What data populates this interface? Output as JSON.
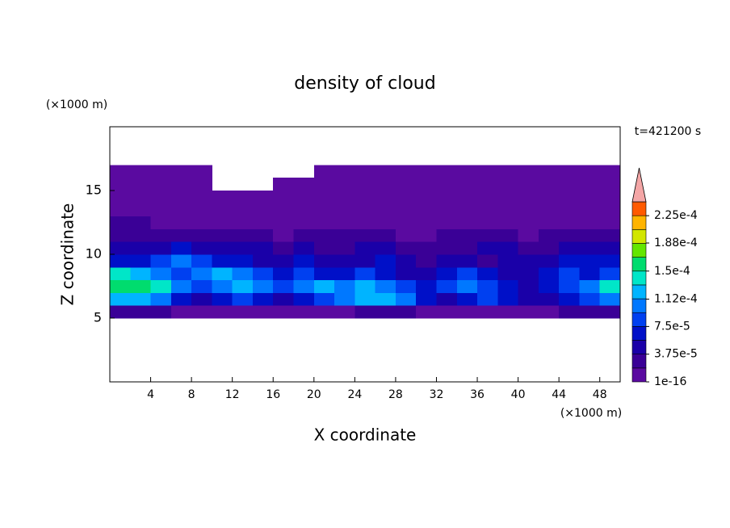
{
  "chart_data": {
    "type": "contour",
    "title": "density of cloud",
    "x_label": "X coordinate",
    "y_label": "Z coordinate",
    "x_unit": "(×1000 m)",
    "y_unit": "(×1000 m)",
    "annotation": "t=421200 s",
    "xlim": [
      0,
      50
    ],
    "ylim": [
      0,
      20
    ],
    "xticks": [
      4,
      8,
      12,
      16,
      20,
      24,
      28,
      32,
      36,
      40,
      44,
      48
    ],
    "yticks": [
      5,
      10,
      15
    ],
    "x": [
      1,
      3,
      5,
      7,
      9,
      11,
      13,
      15,
      17,
      19,
      21,
      23,
      25,
      27,
      29,
      31,
      33,
      35,
      37,
      39,
      41,
      43,
      45,
      47,
      49
    ],
    "y": [
      5.5,
      6.5,
      7.5,
      8.5,
      9.5,
      10.5,
      11.5,
      12.5,
      13.5,
      14.5,
      15.5,
      16.5
    ],
    "z": [
      [
        2.5e-05,
        2.5e-05,
        2.5e-05,
        5e-06,
        5e-06,
        5e-06,
        5e-06,
        5e-06,
        5e-06,
        5e-06,
        5e-06,
        5e-06,
        2.5e-05,
        2.5e-05,
        2.5e-05,
        5e-06,
        5e-06,
        5e-06,
        5e-06,
        5e-06,
        5e-06,
        5e-06,
        2.5e-05,
        2.5e-05,
        2.5e-05
      ],
      [
        0.00012,
        0.00012,
        0.0001,
        6e-05,
        4.5e-05,
        6e-05,
        8e-05,
        6e-05,
        4.5e-05,
        6e-05,
        8e-05,
        0.0001,
        0.00012,
        0.00012,
        0.0001,
        6e-05,
        4.5e-05,
        6e-05,
        8e-05,
        6e-05,
        4.5e-05,
        4.5e-05,
        6e-05,
        8e-05,
        0.0001
      ],
      [
        0.00016,
        0.00016,
        0.000135,
        0.0001,
        8e-05,
        0.0001,
        0.00012,
        0.0001,
        8e-05,
        0.0001,
        0.00012,
        0.0001,
        0.00012,
        0.0001,
        8e-05,
        6e-05,
        8e-05,
        0.0001,
        8e-05,
        6e-05,
        4.5e-05,
        6e-05,
        8e-05,
        0.0001,
        0.000135
      ],
      [
        0.000135,
        0.00012,
        0.0001,
        8e-05,
        0.0001,
        0.00012,
        0.0001,
        8e-05,
        6e-05,
        8e-05,
        6e-05,
        6e-05,
        8e-05,
        6e-05,
        4.5e-05,
        4.5e-05,
        6e-05,
        8e-05,
        6e-05,
        4.5e-05,
        4.5e-05,
        6e-05,
        8e-05,
        6e-05,
        8e-05
      ],
      [
        6e-05,
        6e-05,
        8e-05,
        0.0001,
        8e-05,
        6e-05,
        6e-05,
        4.5e-05,
        4.5e-05,
        6e-05,
        4.5e-05,
        4.5e-05,
        4.5e-05,
        6e-05,
        4.5e-05,
        2.5e-05,
        4.5e-05,
        4.5e-05,
        2.5e-05,
        4.5e-05,
        4.5e-05,
        4.5e-05,
        6e-05,
        6e-05,
        6e-05
      ],
      [
        4.5e-05,
        4.5e-05,
        4.5e-05,
        6e-05,
        4.5e-05,
        4.5e-05,
        4.5e-05,
        4.5e-05,
        2.5e-05,
        4.5e-05,
        2.5e-05,
        2.5e-05,
        4.5e-05,
        4.5e-05,
        2.5e-05,
        2.5e-05,
        2.5e-05,
        2.5e-05,
        4.5e-05,
        4.5e-05,
        2.5e-05,
        2.5e-05,
        4.5e-05,
        4.5e-05,
        4.5e-05
      ],
      [
        2.5e-05,
        2.5e-05,
        2.5e-05,
        2.5e-05,
        2.5e-05,
        2.5e-05,
        2.5e-05,
        2.5e-05,
        5e-06,
        2.5e-05,
        2.5e-05,
        2.5e-05,
        2.5e-05,
        2.5e-05,
        5e-06,
        5e-06,
        2.5e-05,
        2.5e-05,
        2.5e-05,
        2.5e-05,
        5e-06,
        2.5e-05,
        2.5e-05,
        2.5e-05,
        2.5e-05
      ],
      [
        2.5e-05,
        2.5e-05,
        5e-06,
        5e-06,
        5e-06,
        5e-06,
        5e-06,
        5e-06,
        5e-06,
        5e-06,
        5e-06,
        5e-06,
        5e-06,
        5e-06,
        5e-06,
        5e-06,
        5e-06,
        5e-06,
        5e-06,
        5e-06,
        5e-06,
        5e-06,
        5e-06,
        5e-06,
        5e-06
      ],
      [
        5e-06,
        5e-06,
        5e-06,
        5e-06,
        5e-06,
        5e-06,
        5e-06,
        5e-06,
        5e-06,
        5e-06,
        5e-06,
        5e-06,
        5e-06,
        5e-06,
        5e-06,
        5e-06,
        5e-06,
        5e-06,
        5e-06,
        5e-06,
        5e-06,
        5e-06,
        5e-06,
        5e-06,
        5e-06
      ],
      [
        5e-06,
        5e-06,
        5e-06,
        5e-06,
        5e-06,
        5e-06,
        5e-06,
        5e-06,
        5e-06,
        5e-06,
        5e-06,
        5e-06,
        5e-06,
        5e-06,
        5e-06,
        5e-06,
        5e-06,
        5e-06,
        5e-06,
        5e-06,
        5e-06,
        5e-06,
        5e-06,
        5e-06,
        5e-06
      ],
      [
        5e-06,
        5e-06,
        5e-06,
        5e-06,
        5e-06,
        null,
        null,
        null,
        5e-06,
        5e-06,
        5e-06,
        5e-06,
        5e-06,
        5e-06,
        5e-06,
        5e-06,
        5e-06,
        5e-06,
        5e-06,
        5e-06,
        5e-06,
        5e-06,
        5e-06,
        5e-06,
        5e-06
      ],
      [
        5e-06,
        5e-06,
        5e-06,
        5e-06,
        5e-06,
        null,
        null,
        null,
        null,
        null,
        5e-06,
        5e-06,
        5e-06,
        5e-06,
        5e-06,
        5e-06,
        5e-06,
        5e-06,
        5e-06,
        5e-06,
        5e-06,
        5e-06,
        5e-06,
        5e-06,
        5e-06
      ]
    ],
    "colorbar": {
      "lim": [
        1e-16,
        0.00024375
      ],
      "ticks": [
        1e-16,
        {
          "value": 3.75e-05,
          "label": "3.75e-5"
        },
        {
          "value": 7.5e-05,
          "label": "7.5e-5"
        },
        {
          "value": 0.000112,
          "label": "1.12e-4"
        },
        {
          "value": 0.00015,
          "label": "1.5e-4"
        },
        {
          "value": 0.000188,
          "label": "1.88e-4"
        },
        {
          "value": 0.000225,
          "label": "2.25e-4"
        }
      ],
      "colors": [
        "#5a0aa0",
        "#3a0096",
        "#1a00a8",
        "#0010c8",
        "#0040f0",
        "#0078ff",
        "#00b4ff",
        "#00e6c8",
        "#00dc6e",
        "#64e600",
        "#d2e600",
        "#ffb400",
        "#ff5a00"
      ],
      "extend_color": "#f4a6a6"
    }
  }
}
